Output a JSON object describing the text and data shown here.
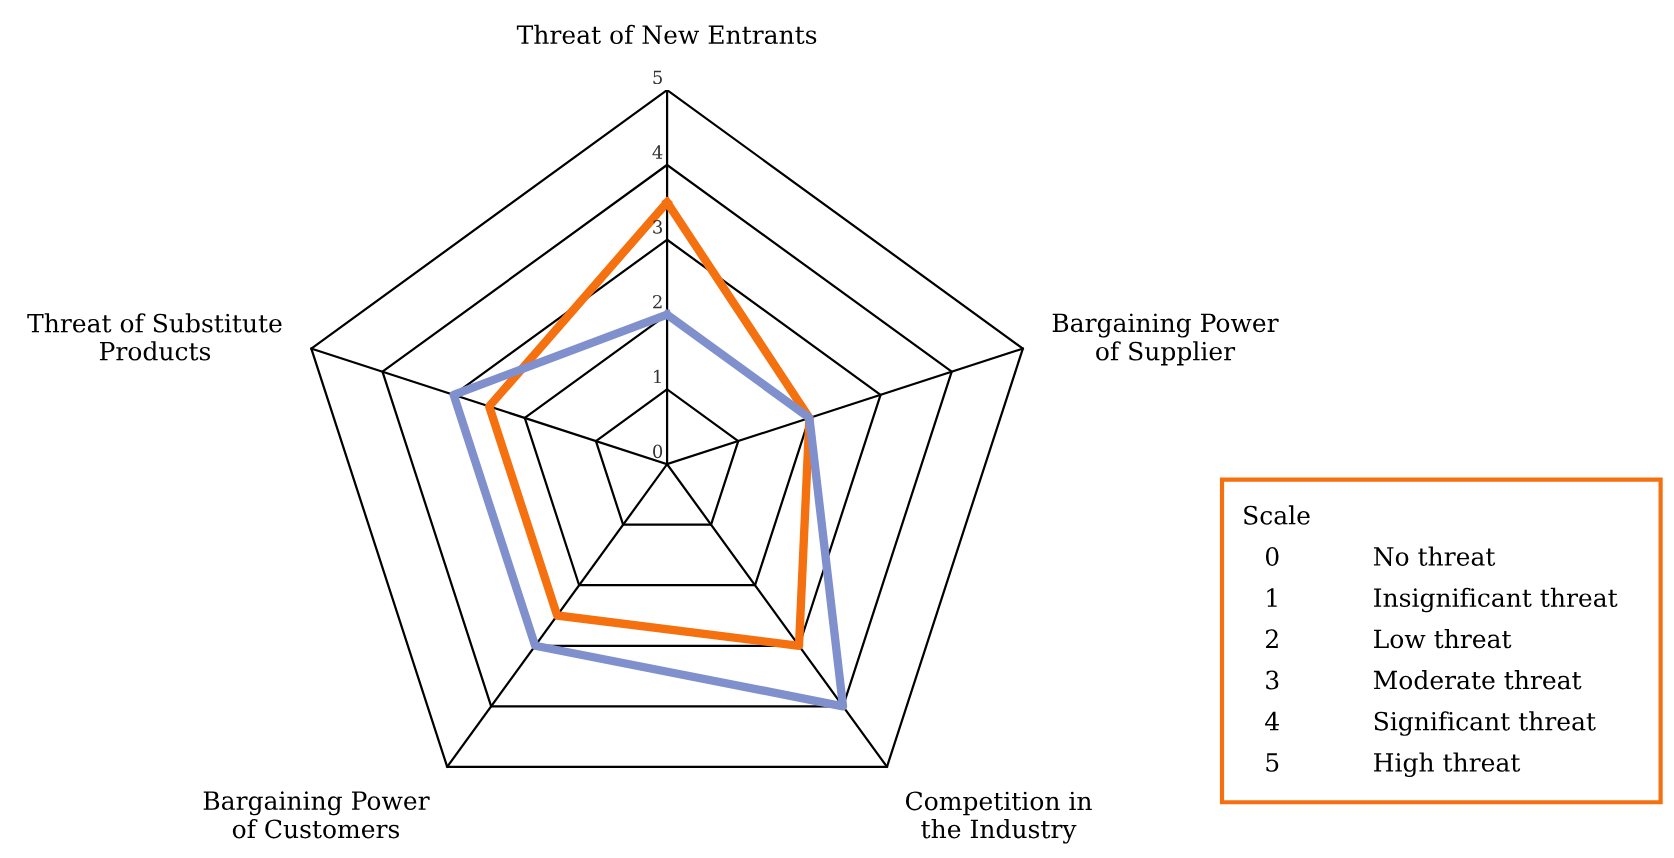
{
  "chart_data": {
    "type": "radar",
    "categories": [
      "Threat of New Entrants",
      "Bargaining Power\nof Supplier",
      "Competition in\nthe Industry",
      "Bargaining Power\nof Customers",
      "Threat of Substitute\nProducts"
    ],
    "series": [
      {
        "color": "#f5700f",
        "values": [
          3.5,
          2,
          3,
          2.5,
          2.5
        ]
      },
      {
        "color": "#8090cc",
        "values": [
          2,
          2,
          4,
          3,
          3
        ]
      }
    ],
    "ylim": [
      0,
      5
    ],
    "yticks": [
      0,
      1,
      2,
      3,
      4,
      5
    ],
    "annotations": [
      "Scale",
      "0 No threat",
      "1 Insignificant threat",
      "2 Low threat",
      "3 Moderate threat",
      "4 Significant threat",
      "5 High threat"
    ]
  }
}
